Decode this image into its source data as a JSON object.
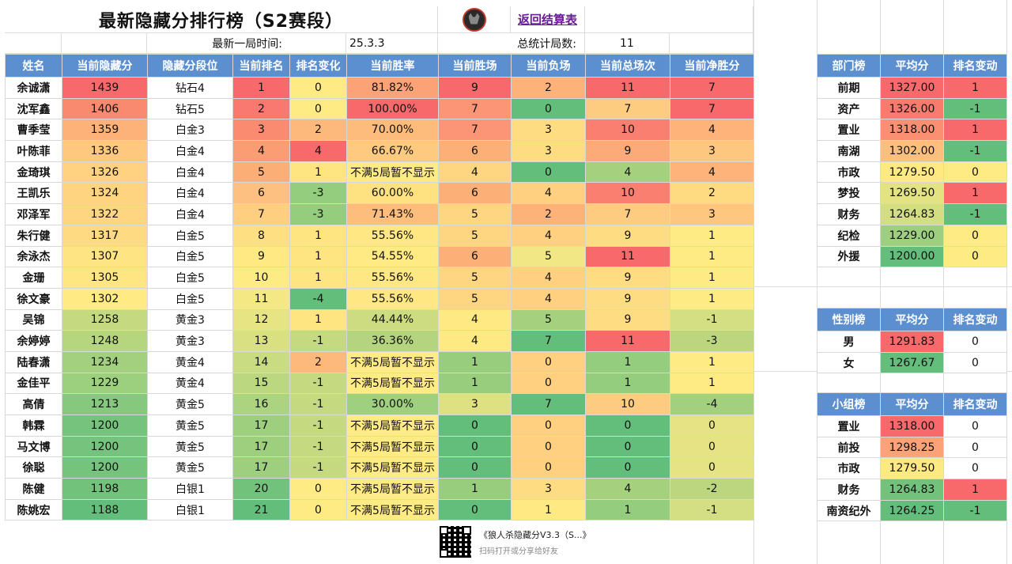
{
  "header": {
    "title": "最新隐藏分排行榜（S2赛段）",
    "back_link": "返回结算表",
    "latest_label": "最新一局时间:",
    "latest_value": "25.3.3",
    "games_label": "总统计局数:",
    "games_value": "11"
  },
  "main": {
    "columns": [
      "姓名",
      "当前隐藏分",
      "隐藏分段位",
      "当前排名",
      "排名变化",
      "当前胜率",
      "当前胜场",
      "当前负场",
      "当前总场次",
      "当前净胜分"
    ],
    "rows": [
      [
        "余诚潇",
        "1439",
        "钻石4",
        "1",
        "0",
        "81.82%",
        "9",
        "2",
        "11",
        "7"
      ],
      [
        "沈军鑫",
        "1406",
        "钻石5",
        "2",
        "0",
        "100.00%",
        "7",
        "0",
        "7",
        "7"
      ],
      [
        "曹季莹",
        "1359",
        "白金3",
        "3",
        "2",
        "70.00%",
        "7",
        "3",
        "10",
        "4"
      ],
      [
        "叶陈菲",
        "1336",
        "白金4",
        "4",
        "4",
        "66.67%",
        "6",
        "3",
        "9",
        "3"
      ],
      [
        "金琦琪",
        "1326",
        "白金4",
        "5",
        "1",
        "不满5局暂不显示",
        "4",
        "0",
        "4",
        "4"
      ],
      [
        "王凯乐",
        "1324",
        "白金4",
        "6",
        "-3",
        "60.00%",
        "6",
        "4",
        "10",
        "2"
      ],
      [
        "邓泽军",
        "1322",
        "白金4",
        "7",
        "-3",
        "71.43%",
        "5",
        "2",
        "7",
        "3"
      ],
      [
        "朱行健",
        "1317",
        "白金5",
        "8",
        "1",
        "55.56%",
        "5",
        "4",
        "9",
        "1"
      ],
      [
        "余泳杰",
        "1307",
        "白金5",
        "9",
        "1",
        "54.55%",
        "6",
        "5",
        "11",
        "1"
      ],
      [
        "金珊",
        "1305",
        "白金5",
        "10",
        "1",
        "55.56%",
        "5",
        "4",
        "9",
        "1"
      ],
      [
        "徐文豪",
        "1302",
        "白金5",
        "11",
        "-4",
        "55.56%",
        "5",
        "4",
        "9",
        "1"
      ],
      [
        "吴锦",
        "1258",
        "黄金3",
        "12",
        "1",
        "44.44%",
        "4",
        "5",
        "9",
        "-1"
      ],
      [
        "余婷婷",
        "1248",
        "黄金3",
        "13",
        "-1",
        "36.36%",
        "4",
        "7",
        "11",
        "-3"
      ],
      [
        "陆春潇",
        "1234",
        "黄金4",
        "14",
        "2",
        "不满5局暂不显示",
        "1",
        "0",
        "1",
        "1"
      ],
      [
        "金佳平",
        "1229",
        "黄金4",
        "15",
        "-1",
        "不满5局暂不显示",
        "1",
        "0",
        "1",
        "1"
      ],
      [
        "高倩",
        "1213",
        "黄金5",
        "16",
        "-1",
        "30.00%",
        "3",
        "7",
        "10",
        "-4"
      ],
      [
        "韩霖",
        "1200",
        "黄金5",
        "17",
        "-1",
        "不满5局暂不显示",
        "0",
        "0",
        "0",
        "0"
      ],
      [
        "马文博",
        "1200",
        "黄金5",
        "17",
        "-1",
        "不满5局暂不显示",
        "0",
        "0",
        "0",
        "0"
      ],
      [
        "徐聪",
        "1200",
        "黄金5",
        "17",
        "-1",
        "不满5局暂不显示",
        "0",
        "0",
        "0",
        "0"
      ],
      [
        "陈健",
        "1198",
        "白银1",
        "20",
        "0",
        "不满5局暂不显示",
        "1",
        "3",
        "4",
        "-2"
      ],
      [
        "陈姚宏",
        "1188",
        "白银1",
        "21",
        "0",
        "不满5局暂不显示",
        "0",
        "1",
        "1",
        "-1"
      ]
    ],
    "colors": [
      [
        "#fff",
        "#f8696b",
        "#fff",
        "#f8696b",
        "#ffeb84",
        "#fba276",
        "#f8696b",
        "#fdb27a",
        "#f8696b",
        "#f8696b"
      ],
      [
        "#fff",
        "#f9896f",
        "#fff",
        "#f97970",
        "#ffeb84",
        "#f8696b",
        "#fb9575",
        "#63be7b",
        "#fecc80",
        "#f8696b"
      ],
      [
        "#fff",
        "#fdb27a",
        "#fff",
        "#fa8b71",
        "#fdb97b",
        "#fdbb7c",
        "#fb9575",
        "#fedc82",
        "#fa7f70",
        "#fdb37a"
      ],
      [
        "#fff",
        "#fec87f",
        "#fff",
        "#fb9d74",
        "#f8696b",
        "#fdca80",
        "#fcb077",
        "#fedc82",
        "#fcaa77",
        "#fec780"
      ],
      [
        "#fff",
        "#fed280",
        "#fff",
        "#fcae77",
        "#fee582",
        "#ffeb84",
        "#fed581",
        "#63be7b",
        "#a5d17e",
        "#fdb37a"
      ],
      [
        "#fff",
        "#fed481",
        "#fff",
        "#fec080",
        "#94cd7e",
        "#fee282",
        "#fcb077",
        "#fed07f",
        "#fa7f70",
        "#feda81"
      ],
      [
        "#fff",
        "#fed581",
        "#fff",
        "#fecf80",
        "#94cd7e",
        "#fdbe7d",
        "#fed581",
        "#fdb27a",
        "#fecc80",
        "#fec780"
      ],
      [
        "#fff",
        "#fedb82",
        "#fff",
        "#fee082",
        "#fee582",
        "#ffe784",
        "#fed581",
        "#fed07f",
        "#fedc82",
        "#ffeb84"
      ],
      [
        "#fff",
        "#ffe483",
        "#fff",
        "#fee983",
        "#fee582",
        "#ffea84",
        "#fcb077",
        "#f1e784",
        "#f8696b",
        "#ffeb84"
      ],
      [
        "#fff",
        "#ffe683",
        "#fff",
        "#fdec83",
        "#fee582",
        "#ffe784",
        "#fed581",
        "#fed07f",
        "#fedc82",
        "#ffeb84"
      ],
      [
        "#fff",
        "#ffea84",
        "#fff",
        "#f3e884",
        "#63be7b",
        "#ffe784",
        "#fed581",
        "#fed07f",
        "#fedc82",
        "#ffeb84"
      ],
      [
        "#fff",
        "#c4d980",
        "#fff",
        "#e6e483",
        "#fee582",
        "#cedc81",
        "#fee983",
        "#a5d17e",
        "#fedc82",
        "#d4de82"
      ],
      [
        "#fff",
        "#b6d57f",
        "#fff",
        "#d8e082",
        "#c4d980",
        "#b5d47f",
        "#fee983",
        "#63be7b",
        "#f8696b",
        "#bcd680"
      ],
      [
        "#fff",
        "#a3d07e",
        "#fff",
        "#c9dc81",
        "#fdb97b",
        "#ffeb84",
        "#98cd7e",
        "#fed07f",
        "#94cd7e",
        "#ffeb84"
      ],
      [
        "#fff",
        "#9ccf7e",
        "#fff",
        "#bbd780",
        "#c4d980",
        "#ffeb84",
        "#98cd7e",
        "#fed07f",
        "#94cd7e",
        "#ffeb84"
      ],
      [
        "#fff",
        "#86c87d",
        "#fff",
        "#acd37f",
        "#c4d980",
        "#9fd07f",
        "#dde182",
        "#63be7b",
        "#fecc80",
        "#a3d07e"
      ],
      [
        "#fff",
        "#75c37c",
        "#fff",
        "#9dcf7e",
        "#c4d980",
        "#ffeb84",
        "#63be7b",
        "#fed07f",
        "#63be7b",
        "#e5e383"
      ],
      [
        "#fff",
        "#75c37c",
        "#fff",
        "#9dcf7e",
        "#c4d980",
        "#ffeb84",
        "#63be7b",
        "#fed07f",
        "#63be7b",
        "#e5e383"
      ],
      [
        "#fff",
        "#75c37c",
        "#fff",
        "#9dcf7e",
        "#c4d980",
        "#ffeb84",
        "#63be7b",
        "#fed07f",
        "#63be7b",
        "#e5e383"
      ],
      [
        "#fff",
        "#72c27b",
        "#fff",
        "#72c27b",
        "#ffeb84",
        "#ffeb84",
        "#98cd7e",
        "#fedc82",
        "#a5d17e",
        "#bcd680"
      ],
      [
        "#fff",
        "#63be7b",
        "#fff",
        "#63be7b",
        "#ffeb84",
        "#ffeb84",
        "#63be7b",
        "#fee983",
        "#94cd7e",
        "#d4de82"
      ]
    ]
  },
  "dept": {
    "columns": [
      "部门榜",
      "平均分",
      "排名变动"
    ],
    "rows": [
      [
        "前期",
        "1327.00",
        "1"
      ],
      [
        "资产",
        "1326.00",
        "-1"
      ],
      [
        "置业",
        "1318.00",
        "1"
      ],
      [
        "南湖",
        "1302.00",
        "-1"
      ],
      [
        "市政",
        "1279.50",
        "0"
      ],
      [
        "梦投",
        "1269.50",
        "1"
      ],
      [
        "财务",
        "1264.83",
        "-1"
      ],
      [
        "纪检",
        "1229.00",
        "0"
      ],
      [
        "外援",
        "1200.00",
        "0"
      ]
    ],
    "colors": [
      [
        "#fff",
        "#f8696b",
        "#f8696b"
      ],
      [
        "#fff",
        "#f97b6e",
        "#63be7b"
      ],
      [
        "#fff",
        "#fa8f72",
        "#f8696b"
      ],
      [
        "#fff",
        "#fdbf7d",
        "#63be7b"
      ],
      [
        "#fff",
        "#fee983",
        "#ffeb84"
      ],
      [
        "#fff",
        "#e3e383",
        "#f8696b"
      ],
      [
        "#fff",
        "#d3de82",
        "#63be7b"
      ],
      [
        "#fff",
        "#9dcf7e",
        "#ffeb84"
      ],
      [
        "#fff",
        "#63be7b",
        "#ffeb84"
      ]
    ]
  },
  "gender": {
    "columns": [
      "性别榜",
      "平均分",
      "排名变动"
    ],
    "rows": [
      [
        "男",
        "1291.83",
        "0"
      ],
      [
        "女",
        "1267.67",
        "0"
      ]
    ],
    "colors": [
      [
        "#fff",
        "#f8696b",
        "#fff"
      ],
      [
        "#fff",
        "#63be7b",
        "#fff"
      ]
    ]
  },
  "group": {
    "columns": [
      "小组榜",
      "平均分",
      "排名变动"
    ],
    "rows": [
      [
        "置业",
        "1318.00",
        "0"
      ],
      [
        "前投",
        "1298.25",
        "0"
      ],
      [
        "市政",
        "1279.50",
        "0"
      ],
      [
        "财务",
        "1264.83",
        "1"
      ],
      [
        "南资纪外",
        "1264.25",
        "-1"
      ]
    ],
    "colors": [
      [
        "#fff",
        "#f8696b",
        "#fff"
      ],
      [
        "#fff",
        "#fba276",
        "#fff"
      ],
      [
        "#fff",
        "#fee983",
        "#fff"
      ],
      [
        "#fff",
        "#72c27b",
        "#f8696b"
      ],
      [
        "#fff",
        "#63be7b",
        "#63be7b"
      ]
    ]
  },
  "footer": {
    "line1": "《狼人杀隐藏分V3.3（S...》",
    "line2": "扫码打开或分享给好友"
  }
}
